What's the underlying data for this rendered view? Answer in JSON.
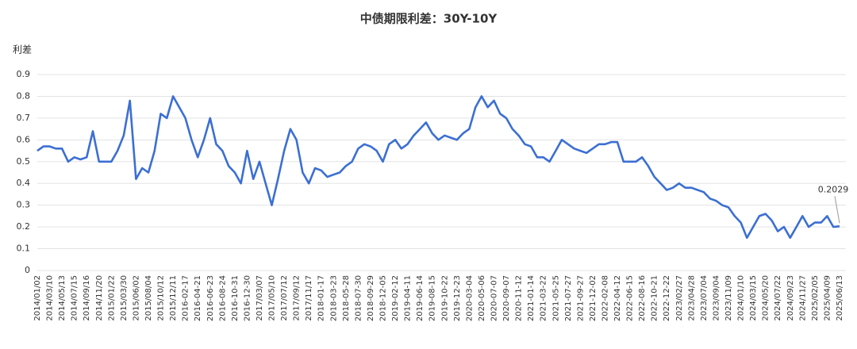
{
  "chart_data": {
    "type": "line",
    "title": "中债期限利差：30Y-10Y",
    "y_label": "利差",
    "categories": [
      "2014/01/02",
      null,
      "2014/03/10",
      null,
      "2014/05/13",
      null,
      "2014/07/15",
      null,
      "2014/09/16",
      null,
      "2014/11/20",
      null,
      "2015/01/22",
      null,
      "2015/03/30",
      null,
      "2015/06/02",
      null,
      "2015/08/04",
      null,
      "2015/10/12",
      null,
      "2015/12/11",
      null,
      "2016-02-17",
      null,
      "2016-04-21",
      null,
      "2016-06-23",
      null,
      "2016-08-24",
      null,
      "2016-10-31",
      null,
      "2016-12-30",
      null,
      "2017/03/07",
      null,
      "2017/05/10",
      null,
      "2017/07/12",
      null,
      "2017/09/12",
      null,
      "2017/11/17",
      null,
      "2018-01-17",
      null,
      "2018-03-23",
      null,
      "2018-05-28",
      null,
      "2018-07-30",
      null,
      "2018-09-29",
      null,
      "2018-12-05",
      null,
      "2019-02-12",
      null,
      "2019-04-11",
      null,
      "2019-06-14",
      null,
      "2019-08-15",
      null,
      "2019-10-22",
      null,
      "2019-12-23",
      null,
      "2020-03-04",
      null,
      "2020-05-06",
      null,
      "2020-07-07",
      null,
      "2020-09-07",
      null,
      "2020-11-12",
      null,
      "2021-01-14",
      null,
      "2021-03-22",
      null,
      "2021-05-25",
      null,
      "2021-07-27",
      null,
      "2021-09-27",
      null,
      "2021-12-02",
      null,
      "2022-02-08",
      null,
      "2022-04-12",
      null,
      "2022-06-15",
      null,
      "2022-08-16",
      null,
      "2022-10-21",
      null,
      "2022-12-22",
      null,
      "2023/02/27",
      null,
      "2023/04/28",
      null,
      "2023/07/04",
      null,
      "2023/09/04",
      null,
      "2023/11/09",
      null,
      "2024/01/10",
      null,
      "2024/03/15",
      null,
      "2024/05/20",
      null,
      "2024/07/22",
      null,
      "2024/09/23",
      null,
      "2024/11/27",
      null,
      "2025/02/05",
      null,
      "2025/04/09",
      null,
      "2025/06/13"
    ],
    "values": [
      0.55,
      0.57,
      0.57,
      0.56,
      0.56,
      0.5,
      0.52,
      0.51,
      0.52,
      0.64,
      0.5,
      0.5,
      0.5,
      0.55,
      0.62,
      0.78,
      0.42,
      0.47,
      0.45,
      0.55,
      0.72,
      0.7,
      0.8,
      0.75,
      0.7,
      0.6,
      0.52,
      0.6,
      0.7,
      0.58,
      0.55,
      0.48,
      0.45,
      0.4,
      0.55,
      0.42,
      0.5,
      0.4,
      0.3,
      0.42,
      0.55,
      0.65,
      0.6,
      0.45,
      0.4,
      0.47,
      0.46,
      0.43,
      0.44,
      0.45,
      0.48,
      0.5,
      0.56,
      0.58,
      0.57,
      0.55,
      0.5,
      0.58,
      0.6,
      0.56,
      0.58,
      0.62,
      0.65,
      0.68,
      0.63,
      0.6,
      0.62,
      0.61,
      0.6,
      0.63,
      0.65,
      0.75,
      0.8,
      0.75,
      0.78,
      0.72,
      0.7,
      0.65,
      0.62,
      0.58,
      0.57,
      0.52,
      0.52,
      0.5,
      0.55,
      0.6,
      0.58,
      0.56,
      0.55,
      0.54,
      0.56,
      0.58,
      0.58,
      0.59,
      0.59,
      0.5,
      0.5,
      0.5,
      0.52,
      0.48,
      0.43,
      0.4,
      0.37,
      0.38,
      0.4,
      0.38,
      0.38,
      0.37,
      0.36,
      0.33,
      0.32,
      0.3,
      0.29,
      0.25,
      0.22,
      0.15,
      0.2,
      0.25,
      0.26,
      0.23,
      0.18,
      0.2,
      0.15,
      0.2,
      0.25,
      0.2,
      0.22,
      0.22,
      0.25,
      0.2,
      0.2029
    ],
    "color": "#3b6fd3",
    "ylim": [
      0,
      0.9
    ],
    "yticks": [
      0,
      0.1,
      0.2,
      0.3,
      0.4,
      0.5,
      0.6,
      0.7,
      0.8,
      0.9
    ],
    "grid": true
  }
}
